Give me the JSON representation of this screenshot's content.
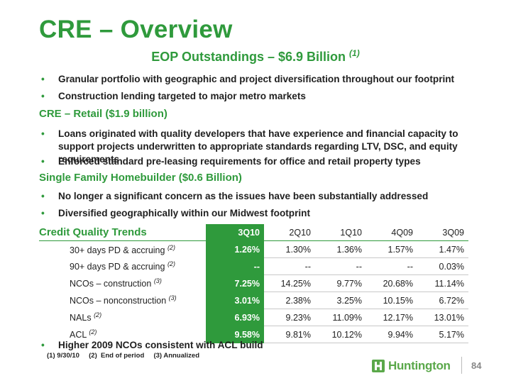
{
  "title": "CRE – Overview",
  "subtitle": {
    "text": "EOP Outstandings – $6.9 Billion",
    "note": "(1)"
  },
  "bullets_intro": [
    "Granular portfolio with geographic and project diversification throughout our footprint",
    "Construction lending targeted to major metro markets"
  ],
  "section_retail": "CRE – Retail  ($1.9 billion)",
  "bullets_retail": [
    "Loans originated with quality developers that have experience and financial capacity to support projects underwritten to appropriate standards regarding LTV, DSC, and equity requirements",
    "Enforced standard pre-leasing requirements for office and retail property types"
  ],
  "section_homebuilder": "Single Family Homebuilder  ($0.6 Billion)",
  "bullets_homebuilder": [
    "No longer a significant  concern as the issues have been substantially addressed",
    "Diversified geographically within our Midwest footprint"
  ],
  "credit_quality": {
    "title": "Credit Quality Trends",
    "columns": [
      "3Q10",
      "2Q10",
      "1Q10",
      "4Q09",
      "3Q09"
    ],
    "rows": [
      {
        "label": "30+ days PD & accruing",
        "note": "(2)",
        "values": [
          "1.26%",
          "1.30%",
          "1.36%",
          "1.57%",
          "1.47%"
        ]
      },
      {
        "label": "90+ days PD & accruing",
        "note": "(2)",
        "values": [
          "--",
          "--",
          "--",
          "--",
          "0.03%"
        ]
      },
      {
        "label": "NCOs – construction",
        "note": "(3)",
        "values": [
          "7.25%",
          "14.25%",
          "9.77%",
          "20.68%",
          "11.14%"
        ]
      },
      {
        "label": "NCOs – nonconstruction ",
        "note": "(3)",
        "values": [
          "3.01%",
          "2.38%",
          "3.25%",
          "10.15%",
          "6.72%"
        ]
      },
      {
        "label": "NALs",
        "note": "(2)",
        "values": [
          "6.93%",
          "9.23%",
          "11.09%",
          "12.17%",
          "13.01%"
        ]
      },
      {
        "label": "ACL",
        "note": "(2)",
        "values": [
          "9.58%",
          "9.81%",
          "10.12%",
          "9.94%",
          "5.17%"
        ]
      }
    ]
  },
  "bullet_final": "Higher 2009 NCOs consistent with ACL build",
  "footnote": "(1) 9/30/10     (2)  End of period     (3) Annualized",
  "logo": {
    "text": "Huntington",
    "icon": "huntington-logo-mark-icon",
    "color": "#5aa84a"
  },
  "page_number": "84",
  "colors": {
    "accent": "#2f9a3c"
  }
}
